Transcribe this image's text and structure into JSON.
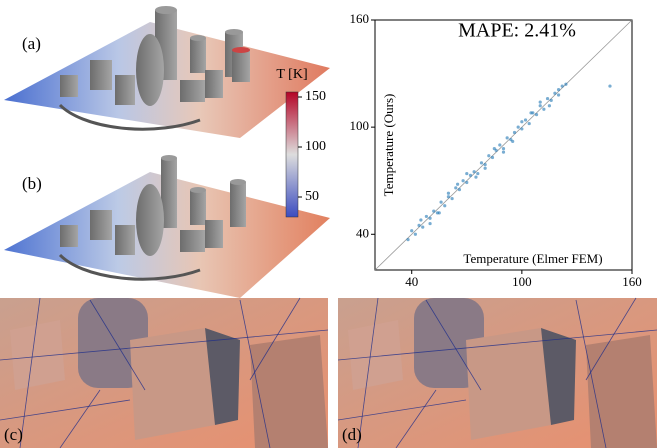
{
  "panels": {
    "a": "(a)",
    "b": "(b)",
    "c": "(c)",
    "d": "(d)"
  },
  "colorbar": {
    "title": "T [K]",
    "clim": [
      30,
      155
    ],
    "ticks": [
      50,
      100,
      150
    ],
    "colors": [
      "#3b4cc0",
      "#dddddd",
      "#b40426"
    ]
  },
  "chart_data": {
    "type": "scatter",
    "title": "MAPE: 2.41%",
    "xlabel": "Temperature (Elmer FEM)",
    "ylabel": "Temperature (Ours)",
    "xlim": [
      20,
      160
    ],
    "ylim": [
      20,
      160
    ],
    "xticks": [
      40,
      100,
      160
    ],
    "yticks": [
      40,
      100,
      160
    ],
    "color": "#1f77b4",
    "x": [
      38,
      40,
      42,
      44,
      46,
      48,
      50,
      52,
      54,
      56,
      58,
      60,
      62,
      64,
      66,
      68,
      70,
      72,
      74,
      76,
      78,
      80,
      82,
      84,
      86,
      88,
      90,
      92,
      94,
      96,
      98,
      100,
      102,
      104,
      106,
      108,
      110,
      112,
      114,
      116,
      118,
      120,
      122,
      124,
      45,
      55,
      65,
      75,
      85,
      95,
      105,
      115,
      50,
      70,
      90,
      110,
      60,
      80,
      100,
      120,
      148
    ],
    "y": [
      37,
      42,
      40,
      45,
      44,
      50,
      49,
      53,
      52,
      58,
      56,
      61,
      60,
      66,
      65,
      70,
      69,
      73,
      75,
      74,
      80,
      79,
      84,
      83,
      87,
      90,
      88,
      94,
      93,
      97,
      100,
      99,
      104,
      102,
      108,
      107,
      112,
      110,
      116,
      115,
      119,
      121,
      123,
      124,
      48,
      52,
      68,
      72,
      88,
      92,
      108,
      112,
      46,
      74,
      86,
      114,
      63,
      77,
      103,
      118,
      123
    ]
  }
}
